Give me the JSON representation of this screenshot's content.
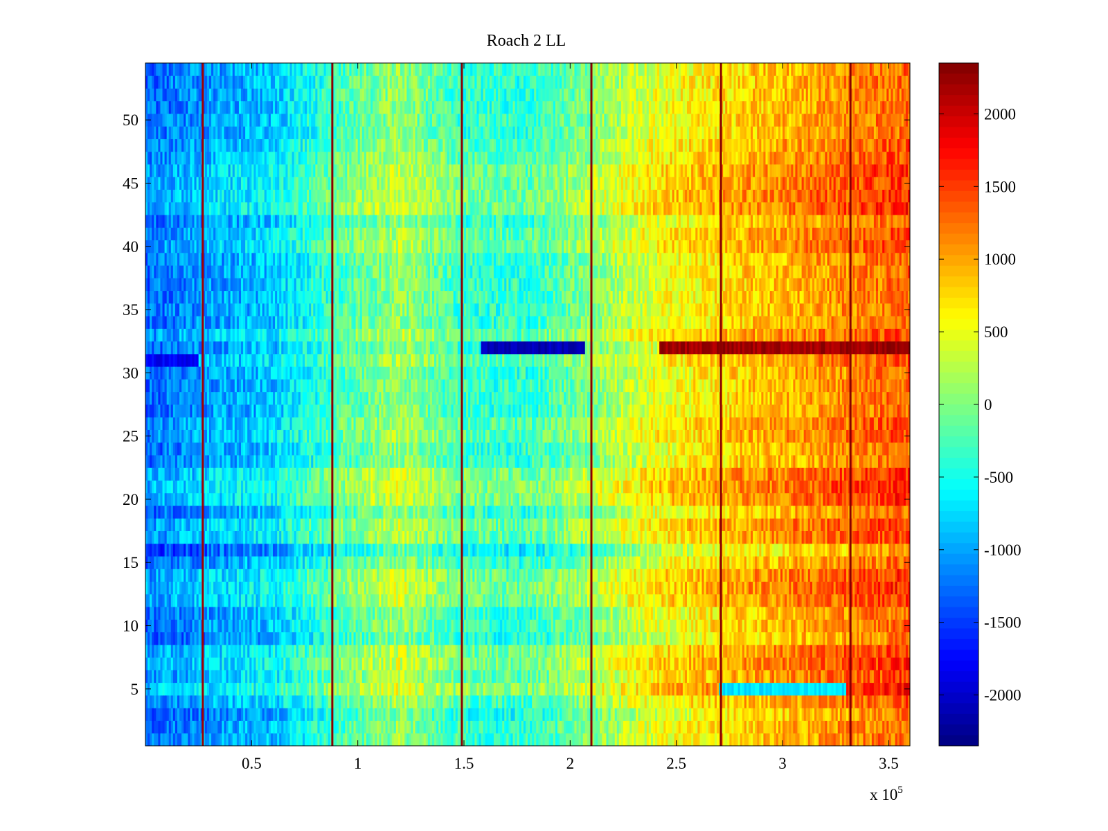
{
  "chart_data": {
    "type": "heatmap",
    "title": "Roach 2 LL",
    "xlabel": "",
    "ylabel": "",
    "colormap": "jet",
    "xlim": [
      0,
      360000
    ],
    "ylim": [
      0.5,
      54.5
    ],
    "clim": [
      -2350,
      2350
    ],
    "x_ticks": [
      50000,
      100000,
      150000,
      200000,
      250000,
      300000,
      350000
    ],
    "x_tick_labels": [
      "0.5",
      "1",
      "1.5",
      "2",
      "2.5",
      "3",
      "3.5"
    ],
    "x_exponent_base": "x 10",
    "x_exponent_power": "5",
    "y_ticks": [
      5,
      10,
      15,
      20,
      25,
      30,
      35,
      40,
      45,
      50
    ],
    "y_tick_labels": [
      "5",
      "10",
      "15",
      "20",
      "25",
      "30",
      "35",
      "40",
      "45",
      "50"
    ],
    "colorbar_ticks": [
      -2000,
      -1500,
      -1000,
      -500,
      0,
      500,
      1000,
      1500,
      2000
    ],
    "colorbar_tick_labels": [
      "-2000",
      "-1500",
      "-1000",
      "-500",
      "0",
      "500",
      "1000",
      "1500",
      "2000"
    ],
    "rows": 54,
    "columns": 360,
    "column_profile": {
      "x": [
        0,
        30000,
        60000,
        90000,
        120000,
        150000,
        180000,
        210000,
        240000,
        270000,
        300000,
        330000,
        360000
      ],
      "value": [
        -1300,
        -1050,
        -850,
        -300,
        100,
        -350,
        -400,
        0,
        450,
        700,
        900,
        1100,
        1300
      ]
    },
    "row_offsets": {
      "rows": [
        3,
        4,
        5,
        6,
        7,
        8,
        9,
        12,
        13,
        14,
        16,
        17,
        18,
        20,
        21,
        22,
        25,
        26,
        31,
        33,
        40,
        41,
        43,
        44,
        45,
        46,
        47,
        48
      ],
      "value": [
        -100,
        100,
        400,
        200,
        300,
        250,
        -100,
        250,
        300,
        250,
        -250,
        200,
        250,
        300,
        350,
        300,
        150,
        150,
        150,
        200,
        200,
        150,
        300,
        300,
        250,
        250,
        150,
        100
      ]
    },
    "anomalies": [
      {
        "row": 32,
        "x_start": 158000,
        "x_end": 207000,
        "value": -2100
      },
      {
        "row": 32,
        "x_start": 242000,
        "x_end": 360000,
        "value": 2200
      },
      {
        "row": 31,
        "x_start": 0,
        "x_end": 25000,
        "value": -1800
      },
      {
        "row": 5,
        "x_start": 270000,
        "x_end": 330000,
        "value": -700
      }
    ],
    "vertical_lines": [
      {
        "x": 27000,
        "value": 2200
      },
      {
        "x": 88000,
        "value": 2300
      },
      {
        "x": 149000,
        "value": 2300
      },
      {
        "x": 210000,
        "value": 2300
      },
      {
        "x": 271000,
        "value": 2300
      },
      {
        "x": 332000,
        "value": 2300
      }
    ]
  }
}
